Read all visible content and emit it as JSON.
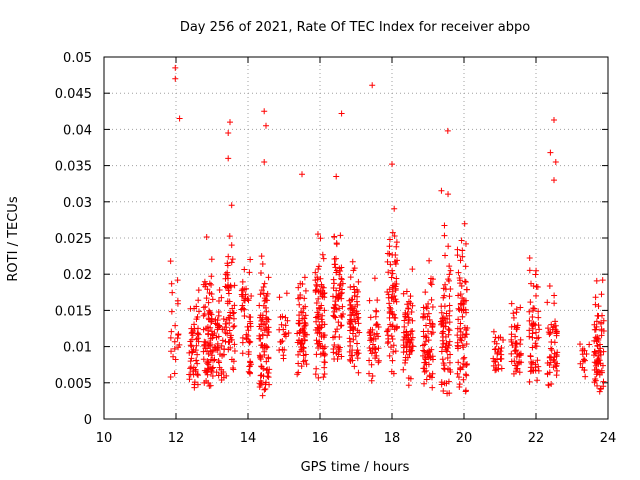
{
  "chart_data": {
    "type": "scatter",
    "title": "Day 256 of 2021, Rate Of TEC Index for receiver abpo",
    "xlabel": "GPS time / hours",
    "ylabel": "ROTI / TECUs",
    "xlim": [
      10,
      24
    ],
    "ylim": [
      0,
      0.05
    ],
    "grid": true,
    "marker": "+",
    "color": "#ff0000",
    "x_ticks": [
      "10",
      "12",
      "14",
      "16",
      "18",
      "20",
      "22",
      "24"
    ],
    "y_ticks": [
      "0",
      "0.005",
      "0.01",
      "0.015",
      "0.02",
      "0.025",
      "0.03",
      "0.035",
      "0.04",
      "0.045",
      "0.05"
    ],
    "x_tick_values": [
      10,
      12,
      14,
      16,
      18,
      20,
      22,
      24
    ],
    "y_tick_values": [
      0,
      0.005,
      0.01,
      0.015,
      0.02,
      0.025,
      0.03,
      0.035,
      0.04,
      0.045,
      0.05
    ],
    "clusters": [
      {
        "x": 11.98,
        "ymin": 0.005,
        "ymax": 0.028,
        "n": 22
      },
      {
        "x": 12.5,
        "ymin": 0.004,
        "ymax": 0.021,
        "n": 55
      },
      {
        "x": 12.9,
        "ymin": 0.003,
        "ymax": 0.029,
        "n": 85
      },
      {
        "x": 13.2,
        "ymin": 0.004,
        "ymax": 0.024,
        "n": 45
      },
      {
        "x": 13.5,
        "ymin": 0.005,
        "ymax": 0.034,
        "n": 60
      },
      {
        "x": 13.95,
        "ymin": 0.005,
        "ymax": 0.027,
        "n": 50
      },
      {
        "x": 14.45,
        "ymin": 0.003,
        "ymax": 0.029,
        "n": 85
      },
      {
        "x": 15.0,
        "ymin": 0.008,
        "ymax": 0.02,
        "n": 22
      },
      {
        "x": 15.5,
        "ymin": 0.005,
        "ymax": 0.025,
        "n": 65
      },
      {
        "x": 16.0,
        "ymin": 0.004,
        "ymax": 0.03,
        "n": 85
      },
      {
        "x": 16.5,
        "ymin": 0.007,
        "ymax": 0.034,
        "n": 75
      },
      {
        "x": 16.95,
        "ymin": 0.006,
        "ymax": 0.028,
        "n": 75
      },
      {
        "x": 17.5,
        "ymin": 0.005,
        "ymax": 0.022,
        "n": 45
      },
      {
        "x": 18.0,
        "ymin": 0.006,
        "ymax": 0.035,
        "n": 75
      },
      {
        "x": 18.45,
        "ymin": 0.004,
        "ymax": 0.026,
        "n": 65
      },
      {
        "x": 19.0,
        "ymin": 0.004,
        "ymax": 0.025,
        "n": 70
      },
      {
        "x": 19.5,
        "ymin": 0.003,
        "ymax": 0.034,
        "n": 80
      },
      {
        "x": 19.95,
        "ymin": 0.002,
        "ymax": 0.034,
        "n": 80
      },
      {
        "x": 20.95,
        "ymin": 0.006,
        "ymax": 0.015,
        "n": 30
      },
      {
        "x": 21.45,
        "ymin": 0.005,
        "ymax": 0.019,
        "n": 45
      },
      {
        "x": 21.95,
        "ymin": 0.004,
        "ymax": 0.027,
        "n": 55
      },
      {
        "x": 22.45,
        "ymin": 0.004,
        "ymax": 0.022,
        "n": 50
      },
      {
        "x": 23.35,
        "ymin": 0.005,
        "ymax": 0.015,
        "n": 15
      },
      {
        "x": 23.75,
        "ymin": 0.003,
        "ymax": 0.022,
        "n": 70
      }
    ],
    "outliers": [
      {
        "x": 11.98,
        "y": 0.0485
      },
      {
        "x": 11.98,
        "y": 0.047
      },
      {
        "x": 12.1,
        "y": 0.0415
      },
      {
        "x": 13.5,
        "y": 0.041
      },
      {
        "x": 13.45,
        "y": 0.0395
      },
      {
        "x": 13.45,
        "y": 0.036
      },
      {
        "x": 14.45,
        "y": 0.0425
      },
      {
        "x": 14.5,
        "y": 0.0405
      },
      {
        "x": 14.45,
        "y": 0.0355
      },
      {
        "x": 16.6,
        "y": 0.0422
      },
      {
        "x": 17.45,
        "y": 0.0461
      },
      {
        "x": 19.55,
        "y": 0.0398
      },
      {
        "x": 22.5,
        "y": 0.0413
      },
      {
        "x": 22.4,
        "y": 0.0368
      },
      {
        "x": 22.55,
        "y": 0.0355
      },
      {
        "x": 22.5,
        "y": 0.033
      },
      {
        "x": 18.0,
        "y": 0.0352
      },
      {
        "x": 15.5,
        "y": 0.0338
      },
      {
        "x": 16.45,
        "y": 0.0335
      }
    ]
  }
}
